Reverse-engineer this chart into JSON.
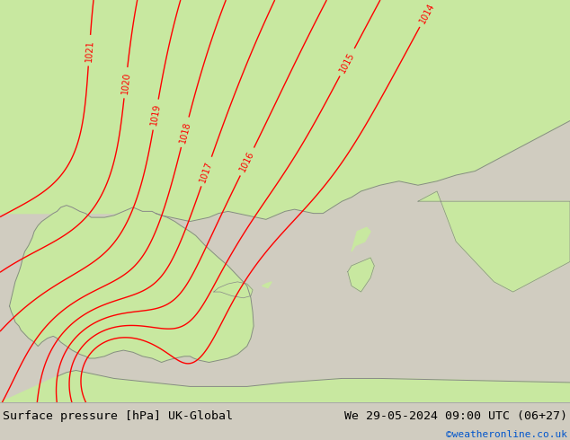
{
  "title_left": "Surface pressure [hPa] UK-Global",
  "title_right": "We 29-05-2024 09:00 UTC (06+27)",
  "watermark": "©weatheronline.co.uk",
  "background_color": "#d0ccc0",
  "land_color": "#c8e8a0",
  "sea_color": "#d0ccc0",
  "contour_color": "red",
  "coast_color": "#888888",
  "font_color_title": "black",
  "font_color_watermark": "#0055cc",
  "bottom_bar_color": "#e0e0d8",
  "contour_levels": [
    1014,
    1015,
    1016,
    1017,
    1018,
    1019,
    1020,
    1021
  ],
  "figsize": [
    6.34,
    4.9
  ],
  "dpi": 100,
  "lon_min": -10,
  "lon_max": 20,
  "lat_min": 34,
  "lat_max": 54
}
